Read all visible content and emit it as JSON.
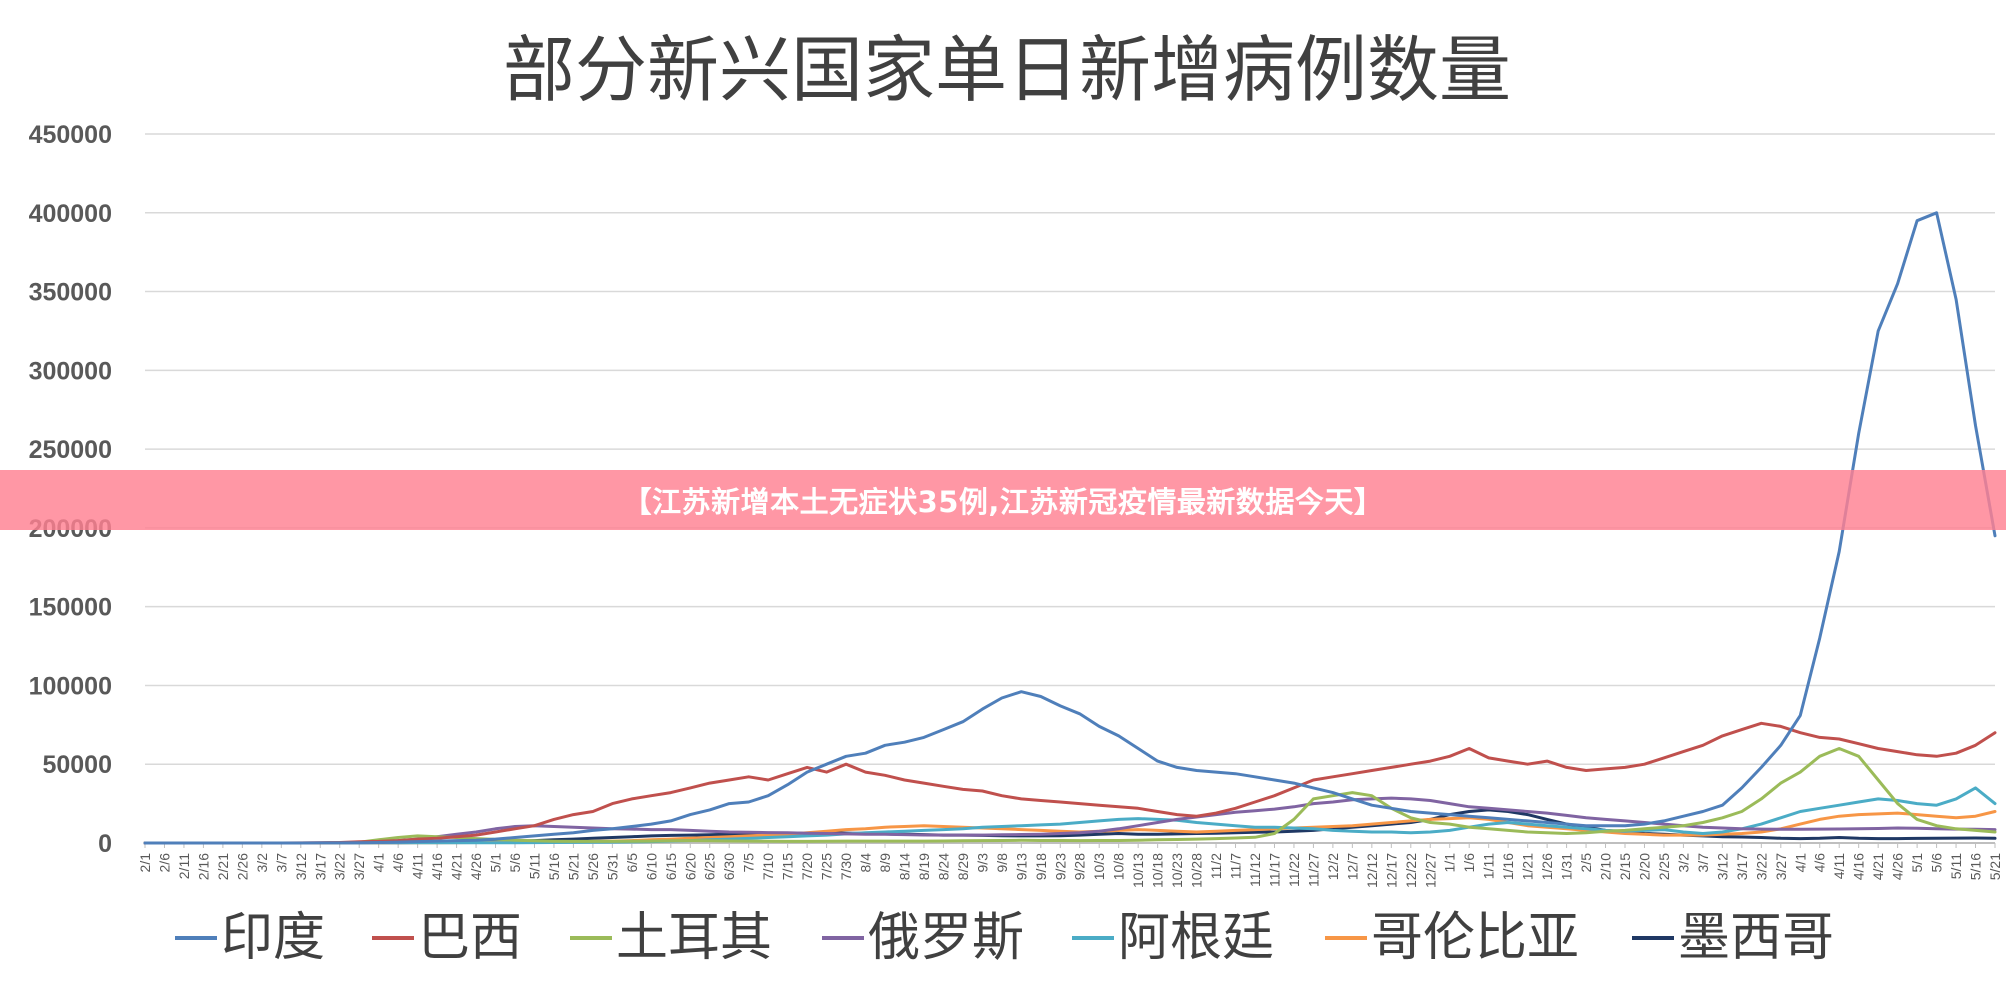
{
  "banner": {
    "text": "【江苏新增本土无症状35例,江苏新冠疫情最新数据今天】",
    "color": "#ff8091"
  },
  "chart_data": {
    "type": "line",
    "title": "部分新兴国家单日新增病例数量",
    "xlabel": "",
    "ylabel": "",
    "ylim": [
      0,
      450000
    ],
    "yticks": [
      "0",
      "50000",
      "100000",
      "150000",
      "200000",
      "250000",
      "300000",
      "350000",
      "400000",
      "450000"
    ],
    "grid": true,
    "legend_position": "bottom",
    "categories": [
      "2/1",
      "2/6",
      "2/11",
      "2/16",
      "2/21",
      "2/26",
      "3/2",
      "3/7",
      "3/12",
      "3/17",
      "3/22",
      "3/27",
      "4/1",
      "4/6",
      "4/11",
      "4/16",
      "4/21",
      "4/26",
      "5/1",
      "5/6",
      "5/11",
      "5/16",
      "5/21",
      "5/26",
      "5/31",
      "6/5",
      "6/10",
      "6/15",
      "6/20",
      "6/25",
      "6/30",
      "7/5",
      "7/10",
      "7/15",
      "7/20",
      "7/25",
      "7/30",
      "8/4",
      "8/9",
      "8/14",
      "8/19",
      "8/24",
      "8/29",
      "9/3",
      "9/8",
      "9/13",
      "9/18",
      "9/23",
      "9/28",
      "10/3",
      "10/8",
      "10/13",
      "10/18",
      "10/23",
      "10/28",
      "11/2",
      "11/7",
      "11/12",
      "11/17",
      "11/22",
      "11/27",
      "12/2",
      "12/7",
      "12/12",
      "12/17",
      "12/22",
      "12/27",
      "1/1",
      "1/6",
      "1/11",
      "1/16",
      "1/21",
      "1/26",
      "1/31",
      "2/5",
      "2/10",
      "2/15",
      "2/20",
      "2/25",
      "3/2",
      "3/7",
      "3/12",
      "3/17",
      "3/22",
      "3/27",
      "4/1",
      "4/6",
      "4/11",
      "4/16",
      "4/21",
      "4/26",
      "5/1",
      "5/6",
      "5/11",
      "5/16",
      "5/21"
    ],
    "series": [
      {
        "name": "印度",
        "color": "#4f7fba",
        "values": [
          0,
          0,
          0,
          0,
          0,
          0,
          0,
          10,
          30,
          60,
          80,
          150,
          300,
          600,
          900,
          1200,
          1500,
          1800,
          2500,
          3500,
          4500,
          5500,
          6500,
          8000,
          9000,
          10500,
          12000,
          14000,
          18000,
          21000,
          25000,
          26000,
          30000,
          37000,
          45000,
          50000,
          55000,
          57000,
          62000,
          64000,
          67000,
          72000,
          77000,
          85000,
          92000,
          96000,
          93000,
          87000,
          82000,
          74000,
          68000,
          60000,
          52000,
          48000,
          46000,
          45000,
          44000,
          42000,
          40000,
          38000,
          35000,
          32000,
          28000,
          24000,
          22000,
          20000,
          19000,
          18000,
          17000,
          16000,
          15000,
          14000,
          13000,
          12000,
          11000,
          11000,
          11000,
          12000,
          14000,
          17000,
          20000,
          24000,
          35000,
          48000,
          62000,
          81000,
          130000,
          185000,
          260000,
          325000,
          355000,
          395000,
          400000,
          345000,
          265000,
          195000
        ]
      },
      {
        "name": "巴西",
        "color": "#c0504d",
        "values": [
          0,
          0,
          0,
          0,
          0,
          0,
          0,
          10,
          50,
          150,
          300,
          800,
          1000,
          1500,
          2500,
          3000,
          4000,
          5000,
          7000,
          9000,
          11000,
          15000,
          18000,
          20000,
          25000,
          28000,
          30000,
          32000,
          35000,
          38000,
          40000,
          42000,
          40000,
          44000,
          48000,
          45000,
          50000,
          45000,
          43000,
          40000,
          38000,
          36000,
          34000,
          33000,
          30000,
          28000,
          27000,
          26000,
          25000,
          24000,
          23000,
          22000,
          20000,
          18000,
          17000,
          19000,
          22000,
          26000,
          30000,
          35000,
          40000,
          42000,
          44000,
          46000,
          48000,
          50000,
          52000,
          55000,
          60000,
          54000,
          52000,
          50000,
          52000,
          48000,
          46000,
          47000,
          48000,
          50000,
          54000,
          58000,
          62000,
          68000,
          72000,
          76000,
          74000,
          70000,
          67000,
          66000,
          63000,
          60000,
          58000,
          56000,
          55000,
          57000,
          62000,
          70000
        ]
      },
      {
        "name": "土耳其",
        "color": "#9bbb59",
        "values": [
          0,
          0,
          0,
          0,
          0,
          0,
          0,
          0,
          0,
          10,
          100,
          500,
          2000,
          3500,
          4500,
          4000,
          3500,
          2800,
          2300,
          1800,
          1400,
          1100,
          1000,
          1000,
          1000,
          1100,
          1200,
          1400,
          1500,
          1400,
          1300,
          1200,
          1100,
          1000,
          1000,
          1100,
          1200,
          1200,
          1200,
          1200,
          1200,
          1300,
          1400,
          1500,
          1600,
          1700,
          1600,
          1600,
          1500,
          1600,
          1600,
          1800,
          2000,
          2200,
          2500,
          2800,
          3200,
          3600,
          6000,
          15000,
          28000,
          30000,
          32000,
          30000,
          22000,
          16000,
          13000,
          12000,
          10000,
          9000,
          8000,
          7000,
          6500,
          6000,
          6500,
          7500,
          8000,
          9000,
          10000,
          11000,
          13000,
          16000,
          20000,
          28000,
          38000,
          45000,
          55000,
          60000,
          55000,
          40000,
          25000,
          15000,
          11000,
          9000,
          8000,
          7000
        ]
      },
      {
        "name": "俄罗斯",
        "color": "#8064a2",
        "values": [
          0,
          0,
          0,
          0,
          0,
          0,
          0,
          0,
          10,
          40,
          100,
          300,
          700,
          1500,
          2500,
          4000,
          5500,
          7000,
          9000,
          10500,
          11000,
          10500,
          10000,
          9500,
          9000,
          8800,
          8500,
          8500,
          8000,
          7500,
          7000,
          6800,
          6600,
          6500,
          6200,
          6000,
          5800,
          5600,
          5500,
          5300,
          5100,
          5000,
          5000,
          5000,
          5200,
          5400,
          5600,
          6000,
          6500,
          7500,
          9000,
          11000,
          13000,
          15000,
          16500,
          18000,
          19500,
          20500,
          21500,
          23000,
          25000,
          26000,
          27500,
          28000,
          28500,
          28000,
          27000,
          25000,
          23000,
          22000,
          21000,
          20000,
          19000,
          17500,
          16000,
          15000,
          14000,
          13000,
          12000,
          11000,
          10000,
          9500,
          9000,
          8800,
          8700,
          8700,
          8800,
          8900,
          9000,
          9200,
          9500,
          9300,
          9000,
          8800,
          8700,
          8500
        ]
      },
      {
        "name": "阿根廷",
        "color": "#4bacc6",
        "values": [
          0,
          0,
          0,
          0,
          0,
          0,
          0,
          0,
          5,
          20,
          50,
          80,
          100,
          100,
          120,
          140,
          150,
          160,
          180,
          200,
          250,
          300,
          400,
          500,
          600,
          700,
          900,
          1200,
          1500,
          2000,
          2500,
          2900,
          3500,
          4000,
          4500,
          5000,
          5800,
          6500,
          7000,
          7500,
          8000,
          8500,
          9000,
          10000,
          10500,
          11000,
          11500,
          12000,
          13000,
          14000,
          15000,
          15500,
          15000,
          14500,
          13000,
          12000,
          11000,
          10000,
          10000,
          9500,
          9000,
          8000,
          7500,
          7000,
          7000,
          6500,
          7000,
          8000,
          10000,
          12000,
          13000,
          12000,
          11000,
          10000,
          9000,
          8000,
          7500,
          8000,
          8500,
          7000,
          6000,
          7000,
          9000,
          12000,
          16000,
          20000,
          22000,
          24000,
          26000,
          28000,
          27000,
          25000,
          24000,
          28000,
          35000,
          25000
        ]
      },
      {
        "name": "哥伦比亚",
        "color": "#f79646",
        "values": [
          0,
          0,
          0,
          0,
          0,
          0,
          0,
          0,
          5,
          10,
          20,
          50,
          80,
          100,
          150,
          200,
          250,
          300,
          400,
          500,
          600,
          700,
          800,
          1000,
          1200,
          1500,
          2000,
          2500,
          3000,
          3500,
          4000,
          4500,
          5000,
          5500,
          6500,
          7500,
          8500,
          9000,
          10000,
          10500,
          11000,
          10500,
          10000,
          9500,
          9000,
          8500,
          8000,
          7500,
          7000,
          7500,
          8000,
          8500,
          8000,
          7500,
          7000,
          7500,
          8000,
          8500,
          9000,
          9500,
          10000,
          10500,
          11000,
          12000,
          13000,
          14000,
          15000,
          15500,
          16000,
          15000,
          13000,
          11000,
          10000,
          9000,
          8000,
          7000,
          6000,
          5500,
          5000,
          5000,
          5000,
          5500,
          6000,
          7000,
          9000,
          12000,
          15000,
          17000,
          18000,
          18500,
          19000,
          18000,
          17000,
          16000,
          17000,
          20000
        ]
      },
      {
        "name": "墨西哥",
        "color": "#1f3864",
        "values": [
          0,
          0,
          0,
          0,
          0,
          0,
          0,
          0,
          5,
          10,
          20,
          50,
          100,
          200,
          300,
          400,
          500,
          700,
          900,
          1200,
          1500,
          2000,
          2500,
          3000,
          3500,
          4000,
          4500,
          4800,
          5000,
          5200,
          5500,
          5800,
          6000,
          6200,
          6300,
          6500,
          6300,
          6000,
          5800,
          5500,
          5300,
          5000,
          5000,
          4800,
          4600,
          4500,
          4500,
          4600,
          5000,
          5500,
          6000,
          5500,
          5500,
          5800,
          6000,
          6200,
          6500,
          6800,
          7000,
          7500,
          8000,
          9000,
          10000,
          11000,
          12000,
          13000,
          15000,
          18000,
          20000,
          21000,
          20000,
          18000,
          15000,
          12000,
          10000,
          8000,
          7000,
          6000,
          5500,
          5000,
          4500,
          4000,
          3800,
          3500,
          3000,
          2800,
          3000,
          3500,
          3000,
          2800,
          2800,
          2900,
          3000,
          3100,
          3200,
          3000
        ]
      }
    ]
  }
}
